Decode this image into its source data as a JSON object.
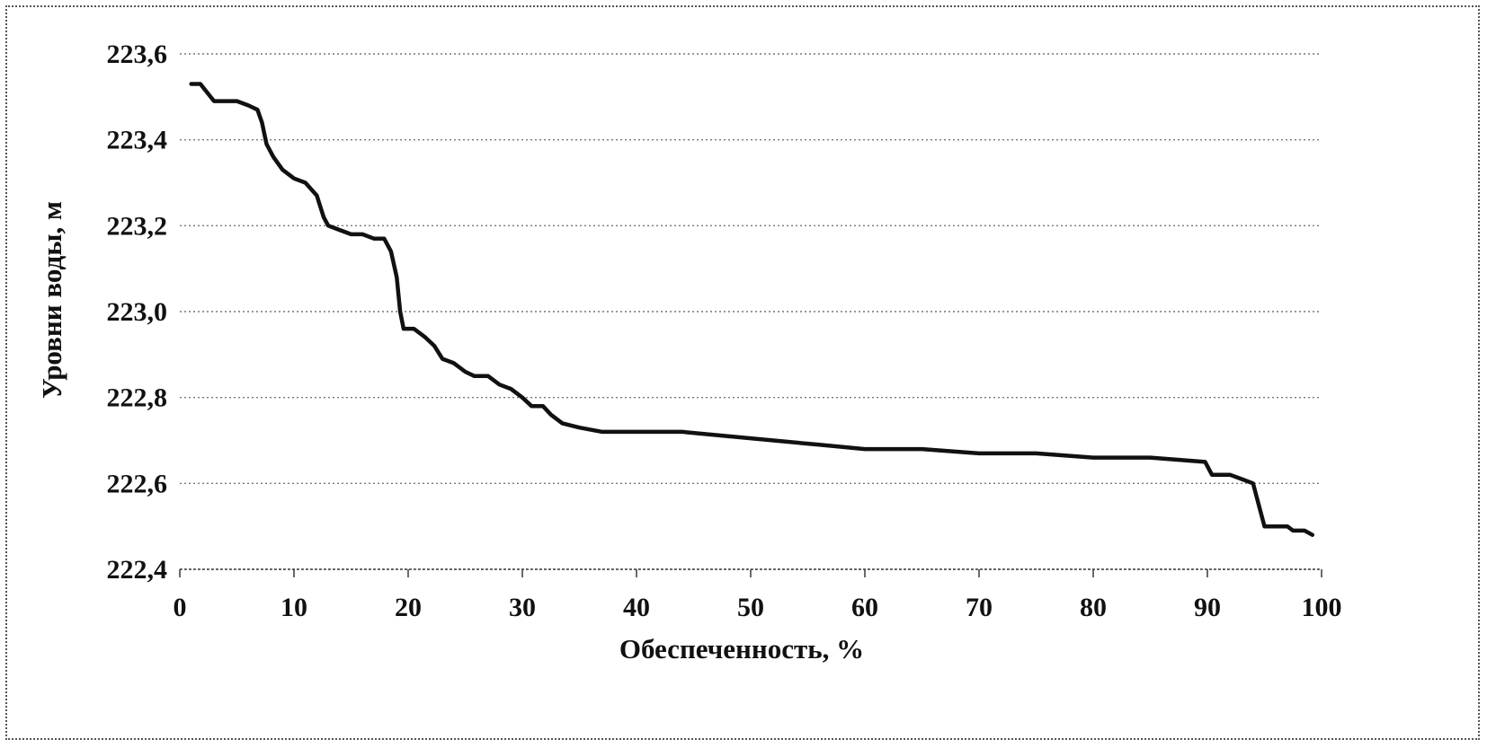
{
  "chart_data": {
    "type": "line",
    "xlabel": "Обеспеченность, %",
    "ylabel": "Уровни воды, м",
    "xlim": [
      0,
      100
    ],
    "ylim": [
      222.4,
      223.6
    ],
    "x_ticks": [
      "0",
      "10",
      "20",
      "30",
      "40",
      "50",
      "60",
      "70",
      "80",
      "90",
      "100"
    ],
    "y_ticks": [
      "222,4",
      "222,6",
      "222,8",
      "223,0",
      "223,2",
      "223,4",
      "223,6"
    ],
    "grid": true,
    "legend": "none",
    "series": [
      {
        "color": "#111111",
        "points": [
          [
            1.0,
            223.53
          ],
          [
            1.8,
            223.53
          ],
          [
            2.4,
            223.51
          ],
          [
            3.0,
            223.49
          ],
          [
            4.0,
            223.49
          ],
          [
            5.0,
            223.49
          ],
          [
            6.0,
            223.48
          ],
          [
            6.8,
            223.47
          ],
          [
            7.2,
            223.44
          ],
          [
            7.6,
            223.39
          ],
          [
            8.2,
            223.36
          ],
          [
            9.0,
            223.33
          ],
          [
            10.0,
            223.31
          ],
          [
            11.0,
            223.3
          ],
          [
            12.0,
            223.27
          ],
          [
            12.6,
            223.22
          ],
          [
            13.0,
            223.2
          ],
          [
            14.0,
            223.19
          ],
          [
            15.0,
            223.18
          ],
          [
            16.0,
            223.18
          ],
          [
            17.0,
            223.17
          ],
          [
            17.9,
            223.17
          ],
          [
            18.5,
            223.14
          ],
          [
            19.0,
            223.08
          ],
          [
            19.3,
            223.0
          ],
          [
            19.6,
            222.96
          ],
          [
            20.5,
            222.96
          ],
          [
            21.5,
            222.94
          ],
          [
            22.3,
            222.92
          ],
          [
            23.0,
            222.89
          ],
          [
            24.0,
            222.88
          ],
          [
            25.0,
            222.86
          ],
          [
            25.8,
            222.85
          ],
          [
            27.0,
            222.85
          ],
          [
            28.0,
            222.83
          ],
          [
            29.0,
            222.82
          ],
          [
            30.0,
            222.8
          ],
          [
            30.8,
            222.78
          ],
          [
            31.8,
            222.78
          ],
          [
            32.5,
            222.76
          ],
          [
            33.5,
            222.74
          ],
          [
            35.0,
            222.73
          ],
          [
            37.0,
            222.72
          ],
          [
            40.0,
            222.72
          ],
          [
            44.0,
            222.72
          ],
          [
            48.0,
            222.71
          ],
          [
            52.0,
            222.7
          ],
          [
            56.0,
            222.69
          ],
          [
            60.0,
            222.68
          ],
          [
            65.0,
            222.68
          ],
          [
            70.0,
            222.67
          ],
          [
            75.0,
            222.67
          ],
          [
            80.0,
            222.66
          ],
          [
            85.0,
            222.66
          ],
          [
            89.8,
            222.65
          ],
          [
            90.4,
            222.62
          ],
          [
            91.0,
            222.62
          ],
          [
            92.0,
            222.62
          ],
          [
            93.0,
            222.61
          ],
          [
            94.0,
            222.6
          ],
          [
            94.5,
            222.55
          ],
          [
            95.0,
            222.5
          ],
          [
            96.0,
            222.5
          ],
          [
            97.0,
            222.5
          ],
          [
            97.5,
            222.49
          ],
          [
            98.5,
            222.49
          ],
          [
            99.2,
            222.48
          ]
        ]
      }
    ]
  }
}
